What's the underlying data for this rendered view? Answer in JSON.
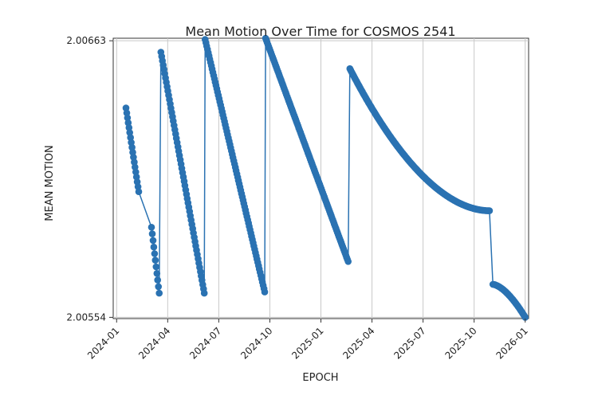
{
  "chart_data": {
    "type": "line",
    "title": "Mean Motion Over Time for COSMOS 2541",
    "xlabel": "EPOCH",
    "ylabel": "MEAN MOTION",
    "x_ticks": [
      "2024-01",
      "2024-04",
      "2024-07",
      "2024-10",
      "2025-01",
      "2025-04",
      "2025-07",
      "2025-10",
      "2026-01"
    ],
    "y_ticks": [
      "2.00554",
      "2.00663"
    ],
    "x_unit": "months since 2024-01",
    "xlim": [
      -0.2,
      24.2
    ],
    "ylim": [
      2.005535,
      2.00664
    ],
    "grid": true,
    "color": "#2a72b2",
    "series": [
      {
        "name": "COSMOS 2541",
        "segments": [
          {
            "from": [
              0.55,
              2.006365
            ],
            "to": [
              1.3,
              2.006035
            ]
          },
          {
            "from": [
              2.05,
              2.005895
            ],
            "to": [
              2.5,
              2.005635
            ]
          },
          {
            "from": [
              2.6,
              2.006585
            ],
            "to": [
              5.15,
              2.005635
            ]
          },
          {
            "from": [
              5.2,
              2.006635
            ],
            "to": [
              8.7,
              2.00564
            ]
          },
          {
            "from": [
              8.75,
              2.00664
            ],
            "to": [
              13.6,
              2.00576
            ]
          },
          {
            "from": [
              13.7,
              2.00652
            ],
            "to": [
              21.9,
              2.00596
            ],
            "curve": "convex"
          },
          {
            "from": [
              22.1,
              2.00567
            ],
            "to": [
              24.0,
              2.00554
            ],
            "curve": "concave"
          }
        ]
      }
    ]
  }
}
